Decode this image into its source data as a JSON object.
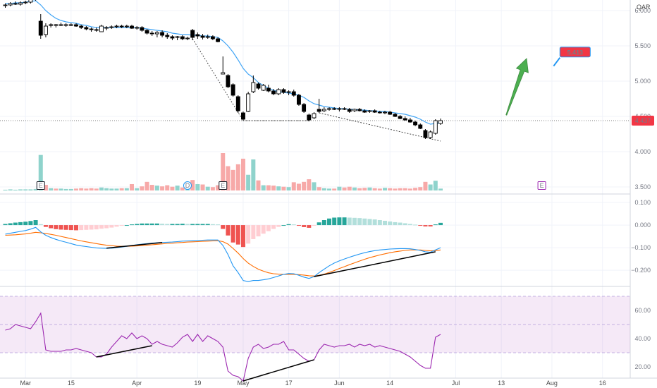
{
  "chart_data": [
    {
      "type": "candlestick",
      "title": "",
      "currency": "QAR",
      "last_price_label": "4.437",
      "target_label": "5.413",
      "ylim": [
        3.45,
        6.15
      ],
      "yticks": [
        "6.000",
        "5.500",
        "5.000",
        "4.500",
        "4.000",
        "3.500"
      ],
      "ytick_values": [
        6.0,
        5.5,
        5.0,
        4.5,
        4.0,
        3.5
      ],
      "x_labels": [
        "Mar",
        "15",
        "Apr",
        "19",
        "May",
        "17",
        "Jun",
        "14",
        "Jul",
        "13",
        "Aug",
        "16"
      ],
      "x_label_index": [
        4,
        13,
        26,
        38,
        47,
        56,
        66,
        76,
        89,
        98,
        108,
        118
      ],
      "candles": [
        [
          6.07,
          6.1,
          6.04,
          6.08
        ],
        [
          6.08,
          6.12,
          6.06,
          6.1
        ],
        [
          6.1,
          6.13,
          6.08,
          6.09
        ],
        [
          6.09,
          6.13,
          6.07,
          6.11
        ],
        [
          6.11,
          6.14,
          6.09,
          6.12
        ],
        [
          6.12,
          6.18,
          6.1,
          6.16
        ],
        [
          6.16,
          6.2,
          6.14,
          6.18
        ],
        [
          5.85,
          5.95,
          5.6,
          5.65
        ],
        [
          5.66,
          5.82,
          5.62,
          5.78
        ],
        [
          5.8,
          5.82,
          5.76,
          5.79
        ],
        [
          5.79,
          5.81,
          5.76,
          5.8
        ],
        [
          5.8,
          5.83,
          5.78,
          5.8
        ],
        [
          5.79,
          5.82,
          5.77,
          5.8
        ],
        [
          5.8,
          5.82,
          5.78,
          5.8
        ],
        [
          5.8,
          5.82,
          5.77,
          5.78
        ],
        [
          5.78,
          5.8,
          5.74,
          5.76
        ],
        [
          5.76,
          5.78,
          5.72,
          5.74
        ],
        [
          5.74,
          5.76,
          5.7,
          5.73
        ],
        [
          5.73,
          5.76,
          5.7,
          5.72
        ],
        [
          5.7,
          5.8,
          5.7,
          5.78
        ],
        [
          5.75,
          5.78,
          5.72,
          5.76
        ],
        [
          5.76,
          5.79,
          5.74,
          5.77
        ],
        [
          5.77,
          5.8,
          5.75,
          5.78
        ],
        [
          5.78,
          5.8,
          5.75,
          5.77
        ],
        [
          5.77,
          5.8,
          5.75,
          5.78
        ],
        [
          5.78,
          5.8,
          5.74,
          5.75
        ],
        [
          5.75,
          5.78,
          5.73,
          5.76
        ],
        [
          5.76,
          5.78,
          5.7,
          5.72
        ],
        [
          5.72,
          5.74,
          5.66,
          5.68
        ],
        [
          5.68,
          5.71,
          5.64,
          5.67
        ],
        [
          5.67,
          5.71,
          5.62,
          5.69
        ],
        [
          5.69,
          5.72,
          5.62,
          5.65
        ],
        [
          5.65,
          5.68,
          5.6,
          5.63
        ],
        [
          5.63,
          5.65,
          5.58,
          5.61
        ],
        [
          5.62,
          5.64,
          5.58,
          5.63
        ],
        [
          5.63,
          5.65,
          5.58,
          5.6
        ],
        [
          5.6,
          5.63,
          5.58,
          5.61
        ],
        [
          5.72,
          5.74,
          5.58,
          5.62
        ],
        [
          5.66,
          5.69,
          5.6,
          5.64
        ],
        [
          5.64,
          5.67,
          5.59,
          5.62
        ],
        [
          5.62,
          5.66,
          5.6,
          5.63
        ],
        [
          5.63,
          5.65,
          5.58,
          5.6
        ],
        [
          5.6,
          5.62,
          5.55,
          5.56
        ],
        [
          5.1,
          5.35,
          5.1,
          5.12
        ],
        [
          5.08,
          5.1,
          4.9,
          4.92
        ],
        [
          4.95,
          4.97,
          4.78,
          4.8
        ],
        [
          4.78,
          4.8,
          4.55,
          4.58
        ],
        [
          4.55,
          4.57,
          4.44,
          4.46
        ],
        [
          4.57,
          4.85,
          4.56,
          4.82
        ],
        [
          4.85,
          5.08,
          4.83,
          4.98
        ],
        [
          4.96,
          4.98,
          4.88,
          4.9
        ],
        [
          4.87,
          4.96,
          4.86,
          4.94
        ],
        [
          4.9,
          4.95,
          4.84,
          4.86
        ],
        [
          4.86,
          4.89,
          4.8,
          4.82
        ],
        [
          4.82,
          4.9,
          4.8,
          4.88
        ],
        [
          4.88,
          4.9,
          4.82,
          4.84
        ],
        [
          4.84,
          4.87,
          4.8,
          4.85
        ],
        [
          4.85,
          4.88,
          4.78,
          4.8
        ],
        [
          4.8,
          4.82,
          4.65,
          4.67
        ],
        [
          4.67,
          4.69,
          4.55,
          4.57
        ],
        [
          4.52,
          4.54,
          4.43,
          4.45
        ],
        [
          4.48,
          4.56,
          4.46,
          4.54
        ],
        [
          4.6,
          4.75,
          4.55,
          4.57
        ],
        [
          4.58,
          4.63,
          4.56,
          4.6
        ],
        [
          4.6,
          4.63,
          4.58,
          4.61
        ],
        [
          4.61,
          4.63,
          4.59,
          4.6
        ],
        [
          4.6,
          4.63,
          4.57,
          4.61
        ],
        [
          4.61,
          4.63,
          4.59,
          4.6
        ],
        [
          4.6,
          4.62,
          4.55,
          4.57
        ],
        [
          4.58,
          4.61,
          4.56,
          4.6
        ],
        [
          4.6,
          4.62,
          4.57,
          4.58
        ],
        [
          4.58,
          4.6,
          4.55,
          4.56
        ],
        [
          4.57,
          4.59,
          4.55,
          4.58
        ],
        [
          4.58,
          4.6,
          4.55,
          4.56
        ],
        [
          4.56,
          4.58,
          4.54,
          4.55
        ],
        [
          4.55,
          4.58,
          4.53,
          4.56
        ],
        [
          4.56,
          4.58,
          4.52,
          4.53
        ],
        [
          4.53,
          4.55,
          4.49,
          4.5
        ],
        [
          4.5,
          4.52,
          4.46,
          4.47
        ],
        [
          4.47,
          4.5,
          4.44,
          4.45
        ],
        [
          4.45,
          4.48,
          4.41,
          4.42
        ],
        [
          4.42,
          4.44,
          4.36,
          4.38
        ],
        [
          4.38,
          4.4,
          4.32,
          4.33
        ],
        [
          4.3,
          4.32,
          4.18,
          4.2
        ],
        [
          4.2,
          4.3,
          4.18,
          4.28
        ],
        [
          4.26,
          4.46,
          4.24,
          4.44
        ],
        [
          4.4,
          4.47,
          4.38,
          4.44
        ]
      ],
      "ema": [
        6.1,
        6.1,
        6.11,
        6.11,
        6.12,
        6.13,
        6.14,
        6.08,
        6.0,
        5.94,
        5.89,
        5.86,
        5.84,
        5.83,
        5.82,
        5.8,
        5.79,
        5.77,
        5.76,
        5.76,
        5.76,
        5.76,
        5.76,
        5.76,
        5.76,
        5.76,
        5.76,
        5.75,
        5.74,
        5.73,
        5.72,
        5.71,
        5.7,
        5.68,
        5.67,
        5.66,
        5.66,
        5.65,
        5.65,
        5.64,
        5.64,
        5.63,
        5.62,
        5.57,
        5.5,
        5.41,
        5.3,
        5.18,
        5.1,
        5.05,
        4.98,
        4.94,
        4.9,
        4.87,
        4.85,
        4.84,
        4.83,
        4.82,
        4.8,
        4.77,
        4.72,
        4.68,
        4.66,
        4.64,
        4.63,
        4.62,
        4.61,
        4.61,
        4.6,
        4.6,
        4.59,
        4.59,
        4.58,
        4.58,
        4.57,
        4.57,
        4.56,
        4.55,
        4.54,
        4.53,
        4.51,
        4.49,
        4.46,
        4.42,
        4.39,
        4.4,
        4.41
      ],
      "support_line_1": [
        [
          37,
          5.6
        ],
        [
          47,
          4.44
        ],
        [
          60,
          4.44
        ]
      ],
      "support_line_2": [
        [
          62,
          4.55
        ],
        [
          86,
          4.15
        ]
      ],
      "arrow_from": [
        99,
        4.52
      ],
      "arrow_to": [
        103,
        5.32
      ],
      "target_point": [
        110,
        5.413
      ],
      "volume": [
        0.02,
        0.03,
        0.02,
        0.03,
        0.03,
        0.03,
        0.04,
        0.95,
        0.15,
        0.06,
        0.05,
        0.05,
        0.04,
        0.04,
        0.05,
        0.06,
        0.05,
        0.06,
        0.05,
        0.08,
        0.06,
        0.05,
        0.05,
        0.06,
        0.06,
        0.17,
        0.06,
        0.11,
        0.23,
        0.15,
        0.13,
        0.11,
        0.14,
        0.1,
        0.13,
        0.08,
        0.09,
        0.28,
        0.17,
        0.16,
        0.1,
        0.09,
        0.14,
        1.0,
        0.65,
        0.55,
        0.7,
        0.85,
        0.42,
        0.83,
        0.27,
        0.14,
        0.14,
        0.13,
        0.11,
        0.1,
        0.09,
        0.22,
        0.18,
        0.23,
        0.3,
        0.22,
        0.09,
        0.06,
        0.05,
        0.05,
        0.1,
        0.08,
        0.1,
        0.08,
        0.06,
        0.07,
        0.08,
        0.06,
        0.05,
        0.07,
        0.06,
        0.05,
        0.06,
        0.06,
        0.05,
        0.07,
        0.09,
        0.23,
        0.16,
        0.26,
        0.05
      ],
      "volume_colors_down": [
        false,
        false,
        false,
        false,
        false,
        false,
        false,
        false,
        true,
        false,
        true,
        false,
        false,
        false,
        true,
        true,
        true,
        true,
        true,
        false,
        false,
        false,
        false,
        true,
        false,
        true,
        false,
        true,
        true,
        true,
        false,
        true,
        true,
        true,
        false,
        true,
        false,
        true,
        false,
        true,
        false,
        true,
        true,
        true,
        true,
        true,
        true,
        true,
        false,
        false,
        true,
        false,
        true,
        true,
        false,
        true,
        false,
        true,
        true,
        true,
        true,
        false,
        true,
        false,
        false,
        true,
        false,
        true,
        true,
        false,
        true,
        true,
        false,
        true,
        true,
        false,
        true,
        true,
        true,
        true,
        true,
        true,
        true,
        true,
        false,
        false,
        false
      ],
      "event_markers": [
        {
          "label": "E",
          "index": 7,
          "type": "earnings"
        },
        {
          "label": "D",
          "index": 36,
          "type": "dividend"
        },
        {
          "label": "E",
          "index": 43,
          "type": "earnings"
        },
        {
          "label": "E",
          "index": 106,
          "type": "earnings-future"
        }
      ]
    },
    {
      "type": "macd",
      "title": "",
      "ylim": [
        -0.265,
        0.125
      ],
      "yticks": [
        "0.100",
        "0.000",
        "−0.100",
        "−0.200"
      ],
      "ytick_values": [
        0.1,
        0.0,
        -0.1,
        -0.2
      ],
      "macd": [
        -0.04,
        -0.036,
        -0.032,
        -0.028,
        -0.024,
        -0.018,
        -0.01,
        -0.03,
        -0.045,
        -0.055,
        -0.063,
        -0.07,
        -0.076,
        -0.082,
        -0.088,
        -0.092,
        -0.095,
        -0.098,
        -0.101,
        -0.102,
        -0.103,
        -0.102,
        -0.1,
        -0.097,
        -0.094,
        -0.09,
        -0.087,
        -0.084,
        -0.082,
        -0.08,
        -0.078,
        -0.077,
        -0.076,
        -0.075,
        -0.073,
        -0.071,
        -0.07,
        -0.069,
        -0.068,
        -0.067,
        -0.066,
        -0.066,
        -0.066,
        -0.09,
        -0.13,
        -0.18,
        -0.21,
        -0.245,
        -0.25,
        -0.245,
        -0.245,
        -0.242,
        -0.238,
        -0.232,
        -0.225,
        -0.218,
        -0.214,
        -0.215,
        -0.222,
        -0.23,
        -0.236,
        -0.228,
        -0.21,
        -0.195,
        -0.18,
        -0.168,
        -0.158,
        -0.15,
        -0.142,
        -0.135,
        -0.128,
        -0.122,
        -0.117,
        -0.113,
        -0.11,
        -0.108,
        -0.106,
        -0.105,
        -0.104,
        -0.104,
        -0.105,
        -0.108,
        -0.112,
        -0.118,
        -0.12,
        -0.11,
        -0.1
      ],
      "signal": [
        -0.045,
        -0.044,
        -0.043,
        -0.041,
        -0.039,
        -0.036,
        -0.032,
        -0.034,
        -0.037,
        -0.041,
        -0.045,
        -0.05,
        -0.055,
        -0.06,
        -0.065,
        -0.07,
        -0.074,
        -0.078,
        -0.082,
        -0.086,
        -0.089,
        -0.091,
        -0.093,
        -0.094,
        -0.094,
        -0.093,
        -0.092,
        -0.091,
        -0.089,
        -0.087,
        -0.085,
        -0.083,
        -0.081,
        -0.08,
        -0.078,
        -0.077,
        -0.075,
        -0.074,
        -0.073,
        -0.072,
        -0.071,
        -0.07,
        -0.069,
        -0.073,
        -0.084,
        -0.103,
        -0.124,
        -0.148,
        -0.168,
        -0.183,
        -0.195,
        -0.204,
        -0.211,
        -0.215,
        -0.217,
        -0.218,
        -0.218,
        -0.218,
        -0.219,
        -0.221,
        -0.224,
        -0.225,
        -0.222,
        -0.217,
        -0.209,
        -0.201,
        -0.192,
        -0.184,
        -0.175,
        -0.167,
        -0.159,
        -0.151,
        -0.144,
        -0.138,
        -0.132,
        -0.127,
        -0.122,
        -0.118,
        -0.115,
        -0.112,
        -0.11,
        -0.11,
        -0.11,
        -0.112,
        -0.114,
        -0.113,
        -0.11
      ],
      "divergence_line_1": [
        [
          20,
          -0.102
        ],
        [
          31,
          -0.077
        ]
      ],
      "divergence_line_2": [
        [
          61,
          -0.228
        ],
        [
          85,
          -0.118
        ]
      ]
    },
    {
      "type": "rsi",
      "title": "",
      "ylim": [
        12,
        76
      ],
      "yticks": [
        "60.00",
        "40.00",
        "20.00"
      ],
      "ytick_values": [
        60,
        40,
        20
      ],
      "band": [
        30,
        70
      ],
      "middle": 50,
      "rsi": [
        46,
        47,
        50,
        49,
        48,
        47,
        52,
        58,
        32,
        31,
        31,
        31,
        32,
        32,
        33,
        32,
        31,
        30,
        27,
        27,
        29,
        34,
        38,
        42,
        40,
        44,
        40,
        42,
        40,
        36,
        38,
        36,
        35,
        34,
        37,
        41,
        43,
        38,
        43,
        38,
        42,
        40,
        38,
        34,
        17,
        14,
        13,
        10,
        26,
        34,
        36,
        33,
        34,
        36,
        36,
        38,
        32,
        32,
        29,
        26,
        24,
        25,
        32,
        36,
        35,
        34,
        35,
        35,
        36,
        34,
        36,
        35,
        36,
        34,
        35,
        34,
        33,
        32,
        31,
        29,
        27,
        24,
        21,
        19,
        19,
        41,
        43
      ],
      "divergence_line_1": [
        [
          18,
          27
        ],
        [
          29,
          35
        ]
      ],
      "divergence_line_2": [
        [
          47,
          10
        ],
        [
          61,
          25
        ]
      ]
    }
  ],
  "axis": {
    "colors": {
      "up": "#ffffff",
      "down": "#000000",
      "ema": "#42a5f5",
      "macd": "#2196f3",
      "signal": "#ff6d00",
      "rsi": "#9c27b0",
      "hist_pos_strong": "#26a69a",
      "hist_pos_weak": "#b2dfdb",
      "hist_neg_strong": "#ef5350",
      "hist_neg_weak": "#ffcdd2",
      "vol_up": "#8fd3cc",
      "vol_down": "#f7a9a8",
      "arrow": "#4caf50",
      "price_tag": "#f23645",
      "target_tag": "#f23645"
    }
  }
}
